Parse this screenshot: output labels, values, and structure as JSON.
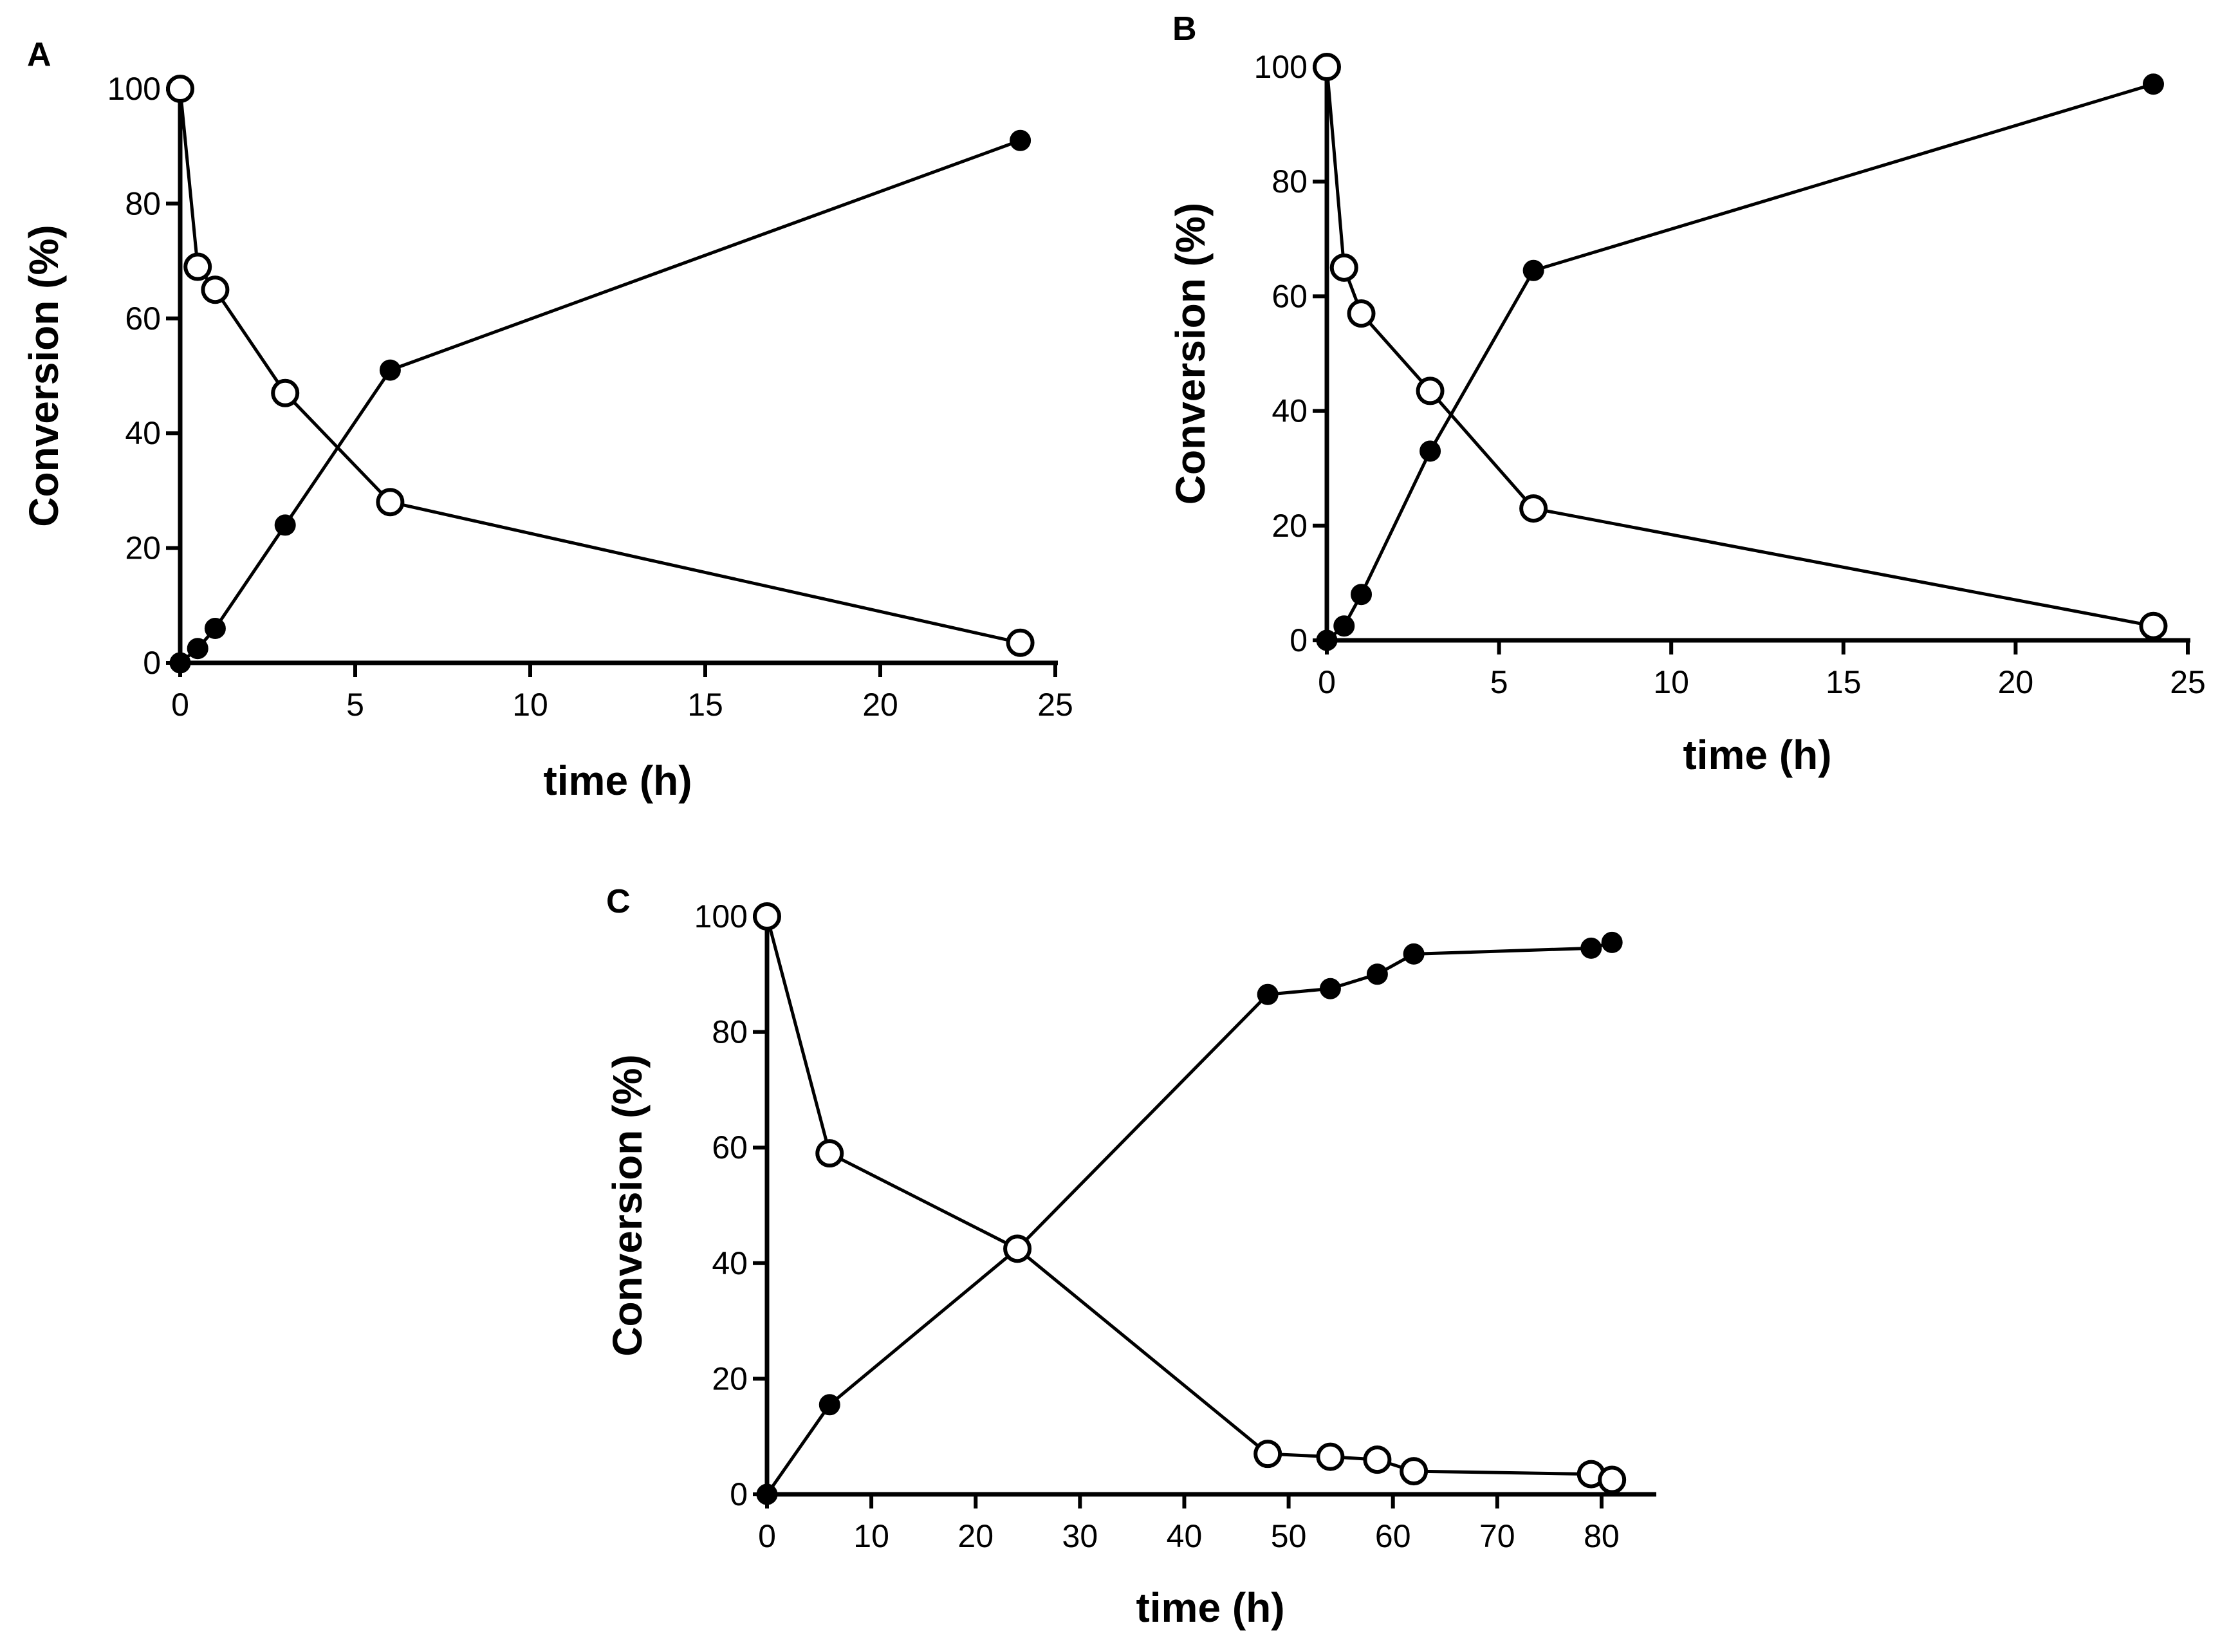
{
  "chart_data": [
    {
      "type": "line",
      "panel_label": "A",
      "xlabel": "time (h)",
      "ylabel": "Conversion (%)",
      "xlim": [
        0,
        25
      ],
      "ylim": [
        0,
        100
      ],
      "xticks": [
        0,
        5,
        10,
        15,
        20,
        25
      ],
      "yticks": [
        0,
        20,
        40,
        60,
        80,
        100
      ],
      "series": [
        {
          "marker": "filled-circle",
          "x": [
            0,
            0.5,
            1,
            3,
            6,
            24
          ],
          "y": [
            0,
            2.5,
            6,
            24,
            51,
            91
          ]
        },
        {
          "marker": "open-circle",
          "x": [
            0,
            0.5,
            1,
            3,
            6,
            24
          ],
          "y": [
            100,
            69,
            65,
            47,
            28,
            3.5
          ]
        }
      ]
    },
    {
      "type": "line",
      "panel_label": "B",
      "xlabel": "time (h)",
      "ylabel": "Conversion (%)",
      "xlim": [
        0,
        25
      ],
      "ylim": [
        0,
        100
      ],
      "xticks": [
        0,
        5,
        10,
        15,
        20,
        25
      ],
      "yticks": [
        0,
        20,
        40,
        60,
        80,
        100
      ],
      "series": [
        {
          "marker": "filled-circle",
          "x": [
            0,
            0.5,
            1,
            3,
            6,
            24
          ],
          "y": [
            0,
            2.5,
            8,
            33,
            64.5,
            97
          ]
        },
        {
          "marker": "open-circle",
          "x": [
            0,
            0.5,
            1,
            3,
            6,
            24
          ],
          "y": [
            100,
            65,
            57,
            43.5,
            23,
            2.5
          ]
        }
      ]
    },
    {
      "type": "line",
      "panel_label": "C",
      "xlabel": "time (h)",
      "ylabel": "Conversion (%)",
      "xlim": [
        0,
        85
      ],
      "ylim": [
        0,
        100
      ],
      "xticks": [
        0,
        10,
        20,
        30,
        40,
        50,
        60,
        70,
        80
      ],
      "yticks": [
        0,
        20,
        40,
        60,
        80,
        100
      ],
      "series": [
        {
          "marker": "filled-circle",
          "x": [
            0,
            6,
            24,
            48,
            54,
            58.5,
            62,
            79,
            81
          ],
          "y": [
            0,
            15.5,
            42.5,
            86.5,
            87.5,
            90,
            93.5,
            94.5,
            95.5
          ]
        },
        {
          "marker": "open-circle",
          "x": [
            0,
            6,
            24,
            48,
            54,
            58.5,
            62,
            79,
            81
          ],
          "y": [
            100,
            59,
            42.5,
            7,
            6.5,
            6,
            4,
            3.5,
            2.5
          ]
        }
      ]
    }
  ]
}
